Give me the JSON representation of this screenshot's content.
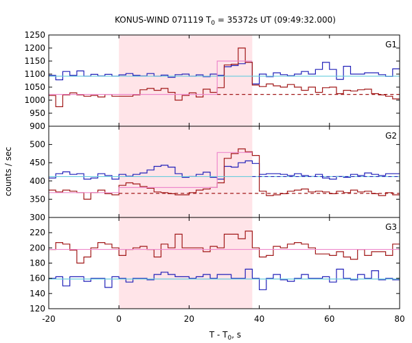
{
  "chart_data": {
    "type": "line",
    "title_main": "KONUS-WIND 071119 T",
    "title_sub": "0",
    "title_rest": " = 35372s UT (09:49:32.000)",
    "xlabel_main": "T - T",
    "xlabel_sub": "0",
    "xlabel_rest": ", s",
    "ylabel": "counts / sec",
    "xlim": [
      -20,
      80
    ],
    "x_ticks": [
      -20,
      0,
      20,
      40,
      60,
      80
    ],
    "highlight_interval": [
      0,
      38
    ],
    "colors": {
      "blue": "#1f1fb8",
      "red": "#a01616",
      "cyan": "#66ccdd",
      "pink": "#ee88cc",
      "highlight": "#ffe4e8"
    },
    "panels": [
      {
        "label": "G1",
        "ylim": [
          900,
          1250
        ],
        "y_ticks": [
          900,
          950,
          1000,
          1050,
          1100,
          1150,
          1200,
          1250
        ],
        "series": [
          {
            "color": "blue",
            "edges": [
              -20,
              -18,
              -16,
              -14,
              -12,
              -10,
              -8,
              -6,
              -4,
              -2,
              0,
              2,
              4,
              6,
              8,
              10,
              12,
              14,
              16,
              18,
              20,
              22,
              24,
              26,
              28,
              30,
              32,
              34,
              36,
              38,
              40,
              42,
              44,
              46,
              48,
              50,
              52,
              54,
              56,
              58,
              60,
              62,
              64,
              66,
              68,
              70,
              72,
              74,
              76,
              78,
              80
            ],
            "values": [
              1095,
              1078,
              1110,
              1095,
              1112,
              1092,
              1099,
              1093,
              1099,
              1092,
              1097,
              1102,
              1095,
              1093,
              1102,
              1092,
              1096,
              1088,
              1098,
              1100,
              1092,
              1097,
              1090,
              1100,
              1095,
              1128,
              1133,
              1140,
              1145,
              1062,
              1100,
              1090,
              1105,
              1098,
              1094,
              1100,
              1110,
              1100,
              1118,
              1145,
              1118,
              1080,
              1130,
              1100,
              1100,
              1105,
              1105,
              1098,
              1091,
              1120
            ]
          },
          {
            "color": "red",
            "edges": [
              -20,
              -18,
              -16,
              -14,
              -12,
              -10,
              -8,
              -6,
              -4,
              -2,
              0,
              2,
              4,
              6,
              8,
              10,
              12,
              14,
              16,
              18,
              20,
              22,
              24,
              26,
              28,
              30,
              32,
              34,
              36,
              38,
              40,
              42,
              44,
              46,
              48,
              50,
              52,
              54,
              56,
              58,
              60,
              62,
              64,
              66,
              68,
              70,
              72,
              74,
              76,
              78,
              80
            ],
            "values": [
              1018,
              975,
              1020,
              1028,
              1020,
              1015,
              1018,
              1012,
              1022,
              1015,
              1015,
              1015,
              1020,
              1040,
              1045,
              1038,
              1045,
              1030,
              1000,
              1018,
              1028,
              1012,
              1042,
              1030,
              1048,
              1135,
              1138,
              1200,
              1145,
              1058,
              1052,
              1062,
              1055,
              1050,
              1060,
              1050,
              1038,
              1050,
              1030,
              1048,
              1050,
              1025,
              1038,
              1035,
              1040,
              1042,
              1025,
              1020,
              1015,
              1005
            ]
          },
          {
            "color": "cyan",
            "kind": "hline",
            "value": 1092
          },
          {
            "color": "pink",
            "kind": "steps",
            "edges": [
              -20,
              0,
              28,
              38
            ],
            "values": [
              1022,
              1022,
              1150
            ]
          },
          {
            "color": "red",
            "kind": "dash",
            "x0": 28,
            "x1": 80,
            "value": 1022
          }
        ]
      },
      {
        "label": "G2",
        "ylim": [
          300,
          550
        ],
        "y_ticks": [
          300,
          350,
          400,
          450,
          500
        ],
        "series": [
          {
            "color": "blue",
            "edges": [
              -20,
              -18,
              -16,
              -14,
              -12,
              -10,
              -8,
              -6,
              -4,
              -2,
              0,
              2,
              4,
              6,
              8,
              10,
              12,
              14,
              16,
              18,
              20,
              22,
              24,
              26,
              28,
              30,
              32,
              34,
              36,
              38,
              40,
              42,
              44,
              46,
              48,
              50,
              52,
              54,
              56,
              58,
              60,
              62,
              64,
              66,
              68,
              70,
              72,
              74,
              76,
              78,
              80
            ],
            "values": [
              408,
              420,
              425,
              418,
              420,
              405,
              408,
              420,
              415,
              405,
              418,
              413,
              418,
              422,
              430,
              440,
              443,
              438,
              420,
              410,
              412,
              418,
              424,
              410,
              405,
              440,
              438,
              450,
              455,
              448,
              418,
              420,
              420,
              418,
              415,
              420,
              415,
              412,
              418,
              408,
              405,
              412,
              410,
              418,
              415,
              422,
              418,
              415,
              420,
              420
            ]
          },
          {
            "color": "red",
            "edges": [
              -20,
              -18,
              -16,
              -14,
              -12,
              -10,
              -8,
              -6,
              -4,
              -2,
              0,
              2,
              4,
              6,
              8,
              10,
              12,
              14,
              16,
              18,
              20,
              22,
              24,
              26,
              28,
              30,
              32,
              34,
              36,
              38,
              40,
              42,
              44,
              46,
              48,
              50,
              52,
              54,
              56,
              58,
              60,
              62,
              64,
              66,
              68,
              70,
              72,
              74,
              76,
              78,
              80
            ],
            "values": [
              375,
              370,
              375,
              372,
              368,
              350,
              368,
              375,
              365,
              362,
              388,
              395,
              392,
              385,
              380,
              370,
              368,
              365,
              362,
              362,
              368,
              375,
              378,
              382,
              395,
              462,
              475,
              488,
              480,
              470,
              372,
              360,
              362,
              365,
              372,
              375,
              378,
              370,
              372,
              370,
              365,
              372,
              368,
              375,
              370,
              372,
              365,
              360,
              368,
              362
            ]
          },
          {
            "color": "cyan",
            "kind": "hline",
            "value": 412
          },
          {
            "color": "pink",
            "kind": "steps",
            "edges": [
              -20,
              0,
              28,
              38
            ],
            "values": [
              368,
              382,
              478
            ]
          },
          {
            "color": "blue",
            "kind": "dash",
            "x0": 38,
            "x1": 80,
            "value": 412
          },
          {
            "color": "red",
            "kind": "dash",
            "x0": 0,
            "x1": 80,
            "value": 366
          }
        ]
      },
      {
        "label": "G3",
        "ylim": [
          120,
          240
        ],
        "y_ticks": [
          120,
          140,
          160,
          180,
          200,
          220
        ],
        "series": [
          {
            "color": "blue",
            "edges": [
              -20,
              -18,
              -16,
              -14,
              -12,
              -10,
              -8,
              -6,
              -4,
              -2,
              0,
              2,
              4,
              6,
              8,
              10,
              12,
              14,
              16,
              18,
              20,
              22,
              24,
              26,
              28,
              30,
              32,
              34,
              36,
              38,
              40,
              42,
              44,
              46,
              48,
              50,
              52,
              54,
              56,
              58,
              60,
              62,
              64,
              66,
              68,
              70,
              72,
              74,
              76,
              78,
              80
            ],
            "values": [
              160,
              162,
              150,
              162,
              162,
              156,
              160,
              160,
              148,
              162,
              160,
              155,
              160,
              160,
              158,
              165,
              168,
              165,
              162,
              162,
              160,
              162,
              165,
              160,
              165,
              165,
              160,
              160,
              172,
              160,
              145,
              160,
              165,
              158,
              156,
              160,
              165,
              160,
              160,
              162,
              155,
              172,
              160,
              158,
              165,
              160,
              170,
              158,
              160,
              158
            ]
          },
          {
            "color": "red",
            "edges": [
              -20,
              -18,
              -16,
              -14,
              -12,
              -10,
              -8,
              -6,
              -4,
              -2,
              0,
              2,
              4,
              6,
              8,
              10,
              12,
              14,
              16,
              18,
              20,
              22,
              24,
              26,
              28,
              30,
              32,
              34,
              36,
              38,
              40,
              42,
              44,
              46,
              48,
              50,
              52,
              54,
              56,
              58,
              60,
              62,
              64,
              66,
              68,
              70,
              72,
              74,
              76,
              78,
              80
            ],
            "values": [
              198,
              207,
              205,
              197,
              180,
              188,
              200,
              207,
              205,
              200,
              190,
              198,
              200,
              202,
              198,
              188,
              205,
              200,
              218,
              200,
              200,
              200,
              195,
              202,
              200,
              218,
              218,
              212,
              222,
              200,
              188,
              190,
              202,
              200,
              205,
              207,
              205,
              200,
              192,
              192,
              190,
              195,
              188,
              185,
              198,
              190,
              195,
              195,
              190,
              205
            ]
          },
          {
            "color": "cyan",
            "kind": "hline",
            "value": 159
          },
          {
            "color": "pink",
            "kind": "hline",
            "value": 198
          }
        ]
      }
    ]
  }
}
